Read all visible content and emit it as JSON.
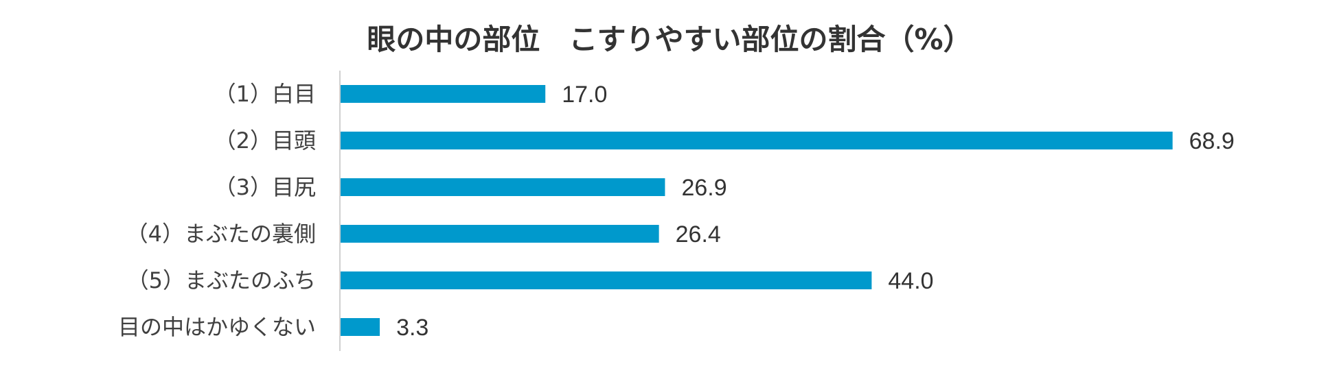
{
  "chart_data": {
    "type": "bar",
    "orientation": "horizontal",
    "title": "眼の中の部位　こすりやすい部位の割合（%）",
    "categories": [
      "（1）白目",
      "（2）目頭",
      "（3）目尻",
      "（4）まぶたの裏側",
      "（5）まぶたのふち",
      "目の中はかゆくない"
    ],
    "values": [
      17.0,
      68.9,
      26.9,
      26.4,
      44.0,
      3.3
    ],
    "value_labels": [
      "17.0",
      "68.9",
      "26.9",
      "26.4",
      "44.0",
      "3.3"
    ],
    "xlim": [
      0,
      100
    ],
    "grid": false,
    "legend": "none",
    "bar_color": "#0099CC",
    "axis_color": "#D0D0D0"
  }
}
